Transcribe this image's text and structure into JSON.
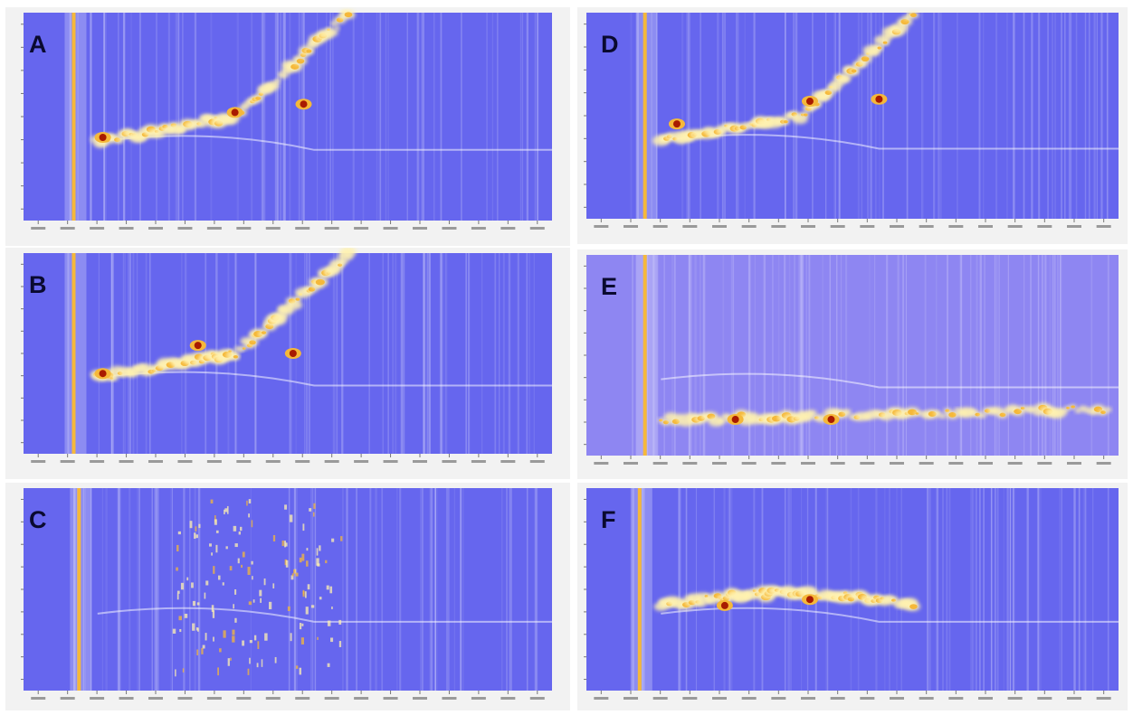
{
  "figure": {
    "panels": [
      {
        "id": "A",
        "letter": "A"
      },
      {
        "id": "B",
        "letter": "B"
      },
      {
        "id": "C",
        "letter": "C"
      },
      {
        "id": "D",
        "letter": "D"
      },
      {
        "id": "E",
        "letter": "E"
      },
      {
        "id": "F",
        "letter": "F"
      }
    ]
  },
  "chart_data": [
    {
      "type": "heatmap",
      "panel": "A",
      "colors": {
        "background": "#6666ee",
        "low": "#fff2b0",
        "mid": "#f5b83a",
        "high": "#a81b00"
      }
    },
    {
      "type": "heatmap",
      "panel": "B",
      "colors": {
        "background": "#6666ee",
        "low": "#fff2b0",
        "mid": "#f5b83a",
        "high": "#a81b00"
      }
    },
    {
      "type": "heatmap",
      "panel": "C",
      "colors": {
        "background": "#6666ee",
        "low": "#fff2b0",
        "mid": "#f5b83a",
        "high": "#a81b00"
      }
    },
    {
      "type": "heatmap",
      "panel": "D",
      "colors": {
        "background": "#6666ee",
        "low": "#fff2b0",
        "mid": "#f5b83a",
        "high": "#a81b00"
      }
    },
    {
      "type": "heatmap",
      "panel": "E",
      "colors": {
        "background": "#8e86f2",
        "low": "#fff2b0",
        "mid": "#f5b83a",
        "high": "#a81b00"
      }
    },
    {
      "type": "heatmap",
      "panel": "F",
      "colors": {
        "background": "#6666ee",
        "low": "#fff2b0",
        "mid": "#f5b83a",
        "high": "#a81b00"
      }
    }
  ]
}
